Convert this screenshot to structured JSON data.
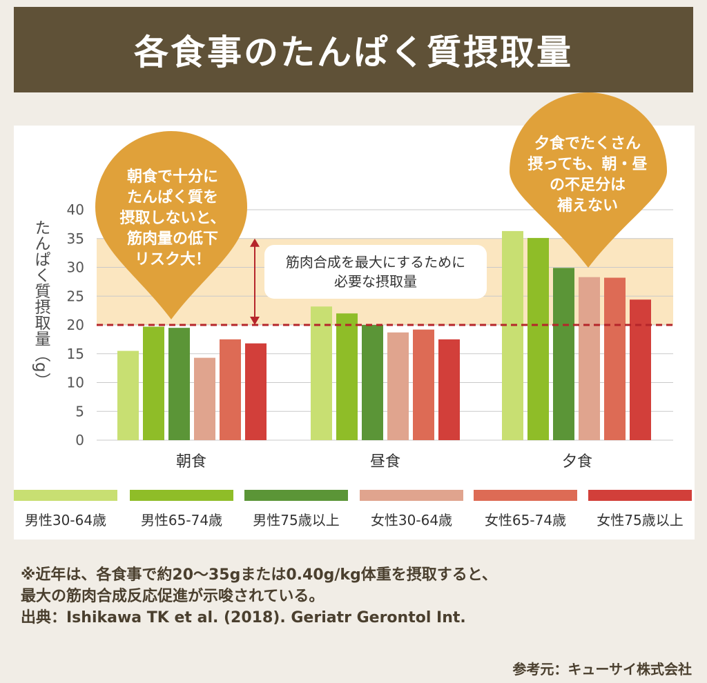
{
  "title": "各食事のたんぱく質摂取量",
  "callouts": {
    "left": "朝食で十分に\nたんぱく質を\n摂取しないと、\n筋肉量の低下\nリスク大！",
    "right": "夕食でたくさん\n摂っても、朝・昼\nの不足分は\n補えない",
    "range_note": "筋肉合成を最大にするために\n必要な摂取量"
  },
  "colors": {
    "banner": "#5f5137",
    "callout": "#e0a13a",
    "range_band": "#fbe6c0",
    "threshold_line": "#b5252a",
    "series": [
      "#c8df72",
      "#8fbd28",
      "#5b9537",
      "#e0a48e",
      "#dd6b55",
      "#d23f3a"
    ]
  },
  "chart_data": {
    "type": "bar",
    "ylabel": "たんぱく質摂取量（g）",
    "categories": [
      "朝食",
      "昼食",
      "夕食"
    ],
    "ylim": [
      0,
      40
    ],
    "yticks": [
      0,
      5,
      10,
      15,
      20,
      25,
      30,
      35,
      40
    ],
    "grid": true,
    "threshold": 20,
    "highlight_range": [
      20,
      35
    ],
    "legend_position": "bottom",
    "series": [
      {
        "name": "男性30-64歳",
        "values": [
          15.5,
          23.2,
          36.3
        ]
      },
      {
        "name": "男性65-74歳",
        "values": [
          19.7,
          22.0,
          35.1
        ]
      },
      {
        "name": "男性75歳以上",
        "values": [
          19.5,
          20.0,
          29.9
        ]
      },
      {
        "name": "女性30-64歳",
        "values": [
          14.3,
          18.7,
          28.3
        ]
      },
      {
        "name": "女性65-74歳",
        "values": [
          17.5,
          19.2,
          28.2
        ]
      },
      {
        "name": "女性75歳以上",
        "values": [
          16.8,
          17.5,
          24.4
        ]
      }
    ]
  },
  "footnote": {
    "line1": "※近年は、各食事で約20～35gまたは0.40g/kg体重を摂取すると、",
    "line2": "最大の筋肉合成反応促進が示唆されている。",
    "line3": "出典：Ishikawa TK et al. (2018). Geriatr Gerontol Int."
  },
  "credit": "参考元：キューサイ株式会社"
}
